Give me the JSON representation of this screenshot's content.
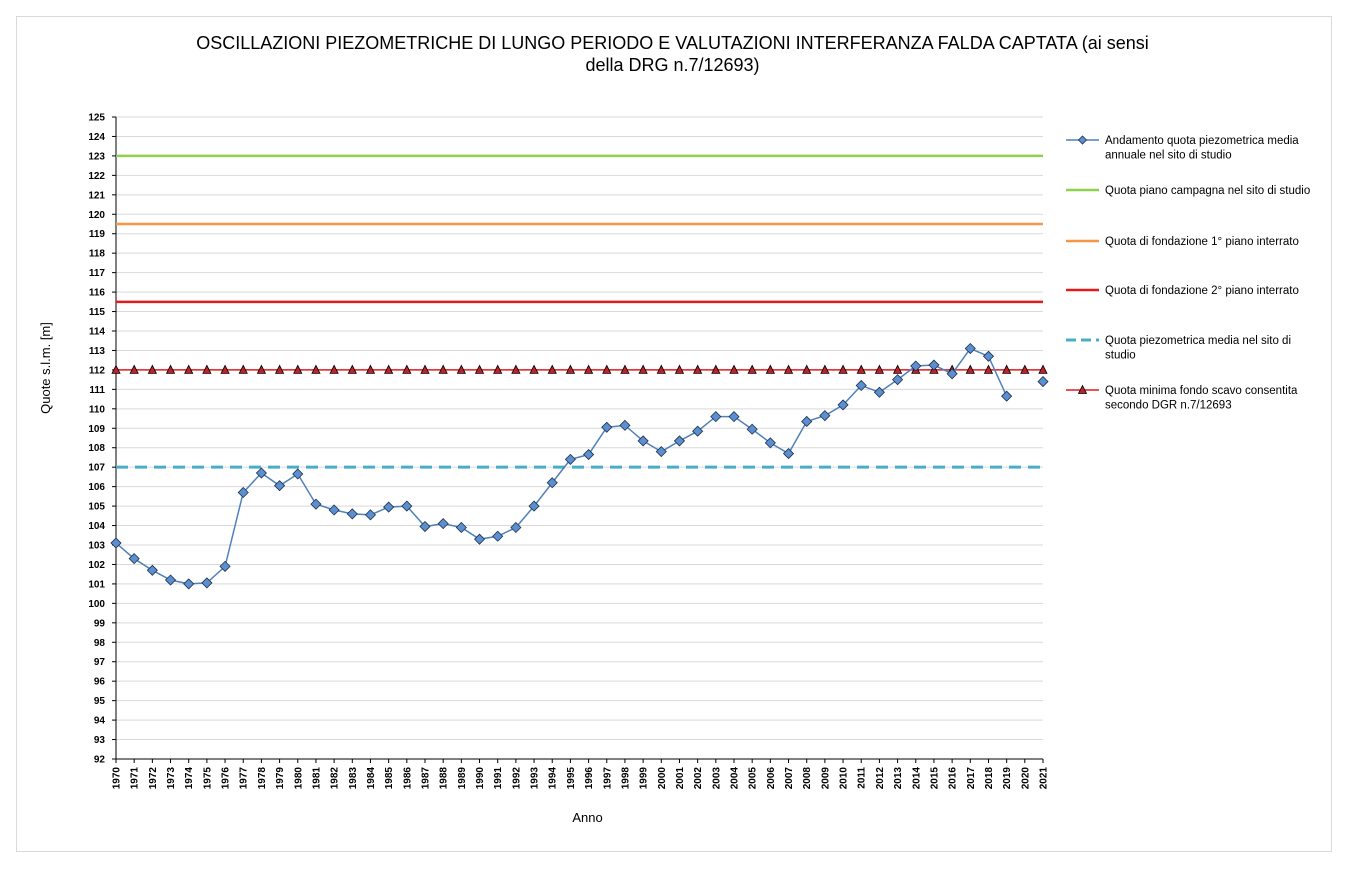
{
  "chart_data": {
    "type": "line",
    "title": "OSCILLAZIONI PIEZOMETRICHE DI LUNGO PERIODO E VALUTAZIONI INTERFERANZA FALDA CAPTATA (ai sensi della DRG n.7/12693)",
    "xlabel": "Anno",
    "ylabel": "Quote s.l.m. [m]",
    "ylim": [
      92,
      125
    ],
    "y_tick_step": 1,
    "grid": "horizontal",
    "legend_position": "right",
    "x": [
      1970,
      1971,
      1972,
      1973,
      1974,
      1975,
      1976,
      1977,
      1978,
      1979,
      1980,
      1981,
      1982,
      1983,
      1984,
      1985,
      1986,
      1987,
      1988,
      1989,
      1990,
      1991,
      1992,
      1993,
      1994,
      1995,
      1996,
      1997,
      1998,
      1999,
      2000,
      2001,
      2002,
      2003,
      2004,
      2005,
      2006,
      2007,
      2008,
      2009,
      2010,
      2011,
      2012,
      2013,
      2014,
      2015,
      2016,
      2017,
      2018,
      2019,
      2020,
      2021
    ],
    "x_tick_labels": [
      "1970",
      "1971",
      "1972",
      "1973",
      "1974",
      "1975",
      "1976",
      "1977",
      "1978",
      "1979",
      "1980",
      "1981",
      "1982",
      "1983",
      "1984",
      "1985",
      "1986",
      "1987",
      "1988",
      "1989",
      "1990",
      "1991",
      "1992",
      "1993",
      "1994",
      "1995",
      "1996",
      "1997",
      "1998",
      "1999",
      "2000",
      "2001",
      "2002",
      "2003",
      "2004",
      "2005",
      "2006",
      "2007",
      "2008",
      "2009",
      "2010",
      "2011",
      "2012",
      "2013",
      "2014",
      "2015",
      "2016",
      "2017",
      "2018",
      "2019",
      "2020",
      "2021"
    ],
    "series": [
      {
        "name": "Andamento quota piezometrica media annuale nel sito di studio",
        "style": "line-diamond",
        "color": "#4f81bd",
        "marker_color": "#5b8fd0",
        "values": [
          103.1,
          102.3,
          101.7,
          101.2,
          101.0,
          101.05,
          101.9,
          105.7,
          106.7,
          106.05,
          106.65,
          105.1,
          104.8,
          104.6,
          104.55,
          104.95,
          105.0,
          103.95,
          104.1,
          103.9,
          103.3,
          103.45,
          103.9,
          105.0,
          106.2,
          107.4,
          107.65,
          109.05,
          109.15,
          108.35,
          107.8,
          108.35,
          108.85,
          109.6,
          109.6,
          108.95,
          108.25,
          107.7,
          109.35,
          109.65,
          110.2,
          111.2,
          110.85,
          111.5,
          112.2,
          112.25,
          111.8,
          113.1,
          112.7,
          110.65,
          null,
          111.4
        ]
      },
      {
        "name": "Quota piano campagna nel sito di studio",
        "style": "line",
        "color": "#8fd14f",
        "constant": 123
      },
      {
        "name": "Quota di fondazione 1° piano interrato",
        "style": "line",
        "color": "#f79646",
        "constant": 119.5
      },
      {
        "name": "Quota di fondazione 2° piano interrato",
        "style": "line",
        "color": "#e41a1c",
        "constant": 115.5
      },
      {
        "name": "Quota piezometrica media nel sito di studio",
        "style": "dashed",
        "color": "#4bacc6",
        "constant": 107
      },
      {
        "name": "Quota minima fondo scavo consentita secondo DGR n.7/12693",
        "style": "line-triangle",
        "color": "#e41a1c",
        "marker_color": "#c0202a",
        "constant": 112
      }
    ],
    "legend": [
      {
        "label": "Andamento quota piezometrica media annuale nel sito di studio",
        "lines": [
          "Andamento quota piezometrica media",
          "annuale nel sito di studio"
        ]
      },
      {
        "label": "Quota piano campagna  nel sito di studio",
        "lines": [
          "Quota piano campagna  nel sito di studio"
        ]
      },
      {
        "label": "Quota di fondazione 1° piano interrato",
        "lines": [
          "Quota di fondazione 1° piano interrato"
        ]
      },
      {
        "label": "Quota di fondazione 2° piano interrato",
        "lines": [
          "Quota di fondazione 2° piano interrato"
        ]
      },
      {
        "label": "Quota piezometrica media nel sito di studio",
        "lines": [
          "Quota piezometrica media nel sito di",
          "studio"
        ]
      },
      {
        "label": "Quota minima fondo scavo consentita secondo DGR n.7/12693",
        "lines": [
          "Quota minima fondo scavo consentita",
          "secondo DGR n.7/12693"
        ]
      }
    ]
  },
  "title_lines": [
    "OSCILLAZIONI PIEZOMETRICHE DI LUNGO PERIODO E VALUTAZIONI INTERFERANZA FALDA CAPTATA (ai sensi",
    "della DRG n.7/12693)"
  ]
}
